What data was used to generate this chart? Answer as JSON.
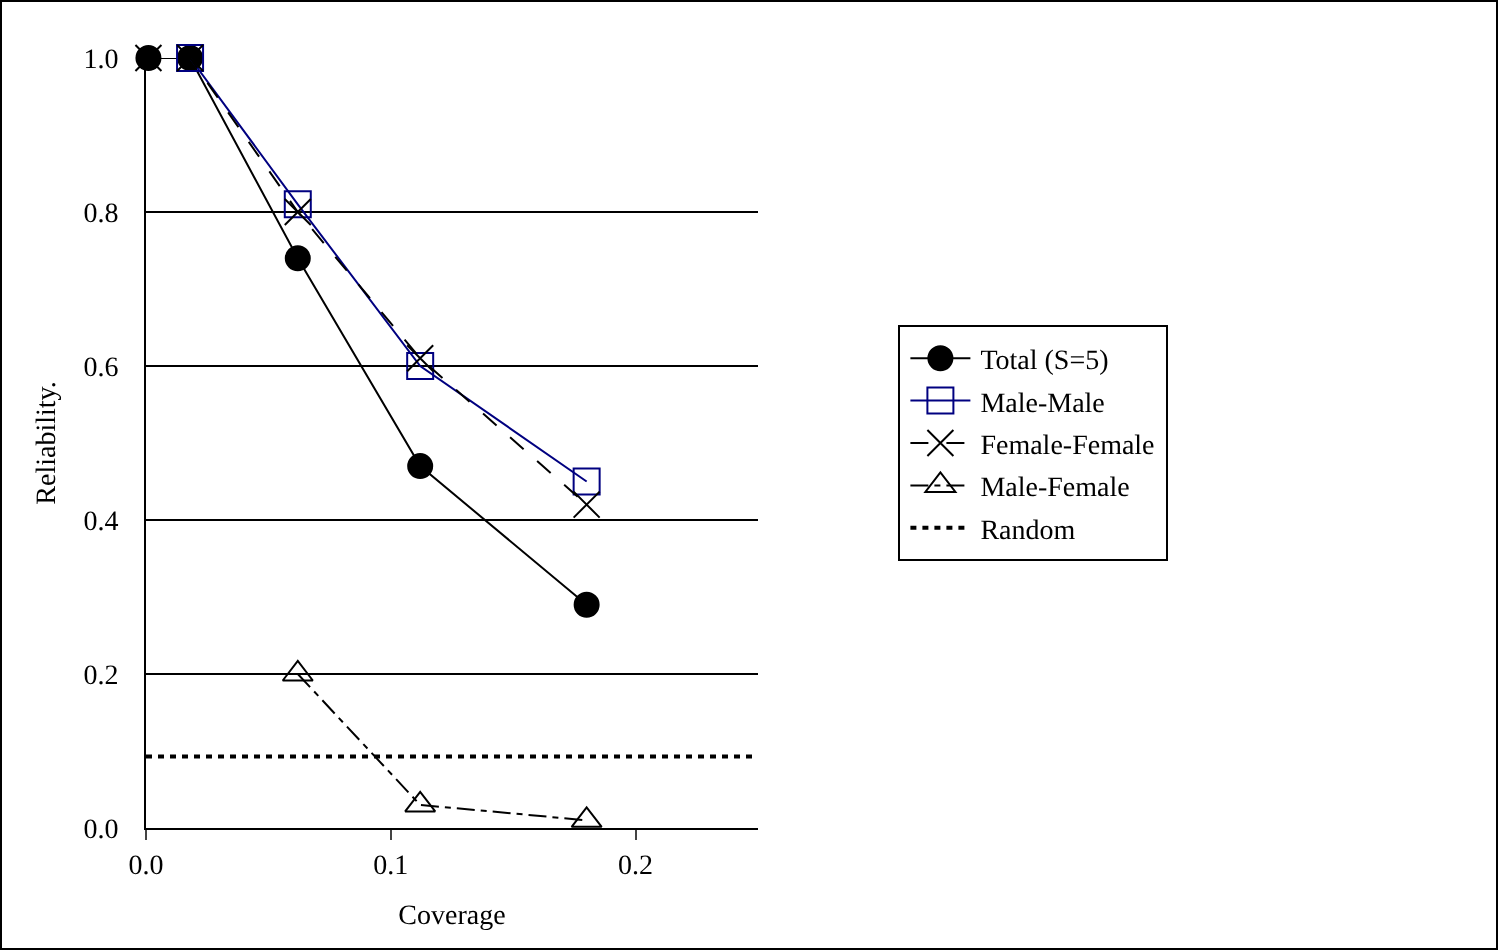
{
  "chart_data": {
    "type": "line",
    "xlabel": "Coverage",
    "ylabel": "Reliability.",
    "xlim": [
      0,
      0.25
    ],
    "xticks": [
      {
        "value": 0,
        "label": "0.0"
      },
      {
        "value": 0.1,
        "label": "0.1"
      },
      {
        "value": 0.2,
        "label": "0.2"
      }
    ],
    "ylim": [
      0,
      1
    ],
    "yticks": [
      {
        "value": 0,
        "label": "0.0"
      },
      {
        "value": 0.2,
        "label": "0.2"
      },
      {
        "value": 0.4,
        "label": "0.4"
      },
      {
        "value": 0.6,
        "label": "0.6"
      },
      {
        "value": 0.8,
        "label": "0.8"
      },
      {
        "value": 1,
        "label": "1.0"
      }
    ],
    "grid": "y",
    "legend": "right",
    "series": [
      {
        "name": "Total (S=5)",
        "color": "#000000",
        "marker": "circle",
        "line_style": "solid",
        "x": [
          0.001,
          0.018,
          0.062,
          0.112,
          0.18
        ],
        "values": [
          1.0,
          1.0,
          0.74,
          0.47,
          0.29
        ]
      },
      {
        "name": "Male-Male",
        "color": "#000080",
        "marker": "square",
        "line_style": "solid",
        "x": [
          0.018,
          0.062,
          0.112,
          0.18
        ],
        "values": [
          1.0,
          0.81,
          0.6,
          0.45
        ]
      },
      {
        "name": "Female-Female",
        "color": "#000000",
        "marker": "cross",
        "line_style": "dashed",
        "x": [
          0.001,
          0.018,
          0.062,
          0.112,
          0.18
        ],
        "values": [
          1.0,
          1.0,
          0.8,
          0.61,
          0.42
        ]
      },
      {
        "name": "Male-Female",
        "color": "#000000",
        "marker": "triangle",
        "line_style": "dashdot",
        "x": [
          0.062,
          0.112,
          0.18
        ],
        "values": [
          0.2,
          0.03,
          0.01
        ]
      }
    ],
    "ref_lines": [
      {
        "axis": "y",
        "value": 0.093,
        "label": "Random",
        "color": "#000000",
        "line_style": "dotted"
      }
    ]
  }
}
